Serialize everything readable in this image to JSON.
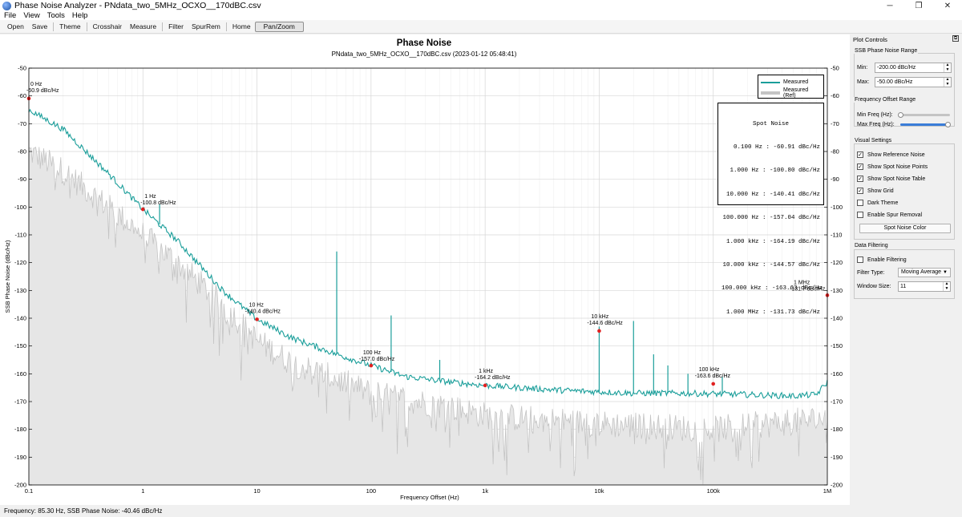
{
  "window": {
    "title": "Phase Noise Analyzer - PNdata_two_5MHz_OCXO__170dBC.csv",
    "minimize": "─",
    "maximize": "❐",
    "close": "✕"
  },
  "menu": [
    "File",
    "View",
    "Tools",
    "Help"
  ],
  "toolbar": {
    "groups": [
      [
        "Open",
        "Save"
      ],
      [
        "Theme"
      ],
      [
        "Crosshair",
        "Measure"
      ],
      [
        "Filter",
        "SpurRem"
      ],
      [
        "Home",
        "Pan/Zoom"
      ]
    ],
    "active": "Pan/Zoom"
  },
  "chart_data": {
    "type": "line",
    "title": "Phase Noise",
    "subtitle": "PNdata_two_5MHz_OCXO__170dBC.csv (2023-01-12 05:48:41)",
    "xlabel": "Frequency Offset (Hz)",
    "ylabel": "SSB Phase Noise (dBc/Hz)",
    "x_scale": "log",
    "xlim": [
      0.1,
      1000000
    ],
    "ylim": [
      -200,
      -50
    ],
    "x_ticks": [
      0.1,
      1,
      10,
      100,
      1000,
      10000,
      100000,
      1000000
    ],
    "x_tick_labels": [
      "0.1",
      "1",
      "10",
      "100",
      "1k",
      "10k",
      "100k",
      "1M"
    ],
    "y_ticks": [
      -50,
      -60,
      -70,
      -80,
      -90,
      -100,
      -110,
      -120,
      -130,
      -140,
      -150,
      -160,
      -170,
      -180,
      -190,
      -200
    ],
    "grid": true,
    "legend_position": "top-right",
    "series": [
      {
        "name": "Measured",
        "color": "#1a9e9a",
        "x": [
          0.1,
          0.2,
          0.5,
          1,
          2,
          5,
          10,
          20,
          50,
          100,
          200,
          500,
          1000,
          2000,
          5000,
          10000,
          20000,
          50000,
          100000,
          200000,
          500000,
          800000,
          1000000
        ],
        "y": [
          -65,
          -72,
          -88,
          -100.8,
          -112,
          -130,
          -140.4,
          -147,
          -153,
          -157,
          -161,
          -163,
          -164.2,
          -165,
          -166,
          -166.5,
          -167,
          -167,
          -167.2,
          -167.5,
          -168,
          -167.5,
          -163
        ],
        "spurs": [
          {
            "x": 1.4,
            "y": -99
          },
          {
            "x": 50,
            "y": -116
          },
          {
            "x": 150,
            "y": -139
          },
          {
            "x": 400,
            "y": -155
          },
          {
            "x": 10000,
            "y": -143
          },
          {
            "x": 20000,
            "y": -141
          },
          {
            "x": 30000,
            "y": -153
          },
          {
            "x": 40000,
            "y": -157
          },
          {
            "x": 60000,
            "y": -160
          },
          {
            "x": 120000,
            "y": -161
          }
        ]
      },
      {
        "name": "Measured (Ref)",
        "color": "#c4c4c4",
        "x": [
          0.1,
          0.2,
          0.5,
          1,
          2,
          5,
          10,
          20,
          50,
          100,
          500,
          1000,
          10000,
          100000,
          1000000
        ],
        "y": [
          -80,
          -87,
          -100,
          -110,
          -120,
          -135,
          -148,
          -156,
          -162,
          -167,
          -172,
          -175,
          -178,
          -180,
          -176
        ]
      }
    ],
    "spot_points": [
      {
        "x": 0.1,
        "y": -60.91,
        "label_freq": "0 Hz",
        "label_val": "-60.9 dBc/Hz"
      },
      {
        "x": 1,
        "y": -100.8,
        "label_freq": "1 Hz",
        "label_val": "-100.8 dBc/Hz"
      },
      {
        "x": 10,
        "y": -140.41,
        "label_freq": "10 Hz",
        "label_val": "-140.4 dBc/Hz"
      },
      {
        "x": 100,
        "y": -157.04,
        "label_freq": "100 Hz",
        "label_val": "-157.0 dBc/Hz"
      },
      {
        "x": 1000,
        "y": -164.19,
        "label_freq": "1 kHz",
        "label_val": "-164.2 dBc/Hz"
      },
      {
        "x": 10000,
        "y": -144.57,
        "label_freq": "10 kHz",
        "label_val": "-144.6 dBc/Hz"
      },
      {
        "x": 100000,
        "y": -163.63,
        "label_freq": "100 kHz",
        "label_val": "-163.6 dBc/Hz"
      },
      {
        "x": 1000000,
        "y": -131.73,
        "label_freq": "1 MHz",
        "label_val": "-131.7 dBc/Hz"
      }
    ],
    "spot_point_color": "#e02020"
  },
  "spot_table": {
    "title": "Spot Noise",
    "rows": [
      "0.100 Hz : -60.91 dBc/Hz",
      "1.000 Hz : -100.80 dBc/Hz",
      "10.000 Hz : -140.41 dBc/Hz",
      "100.000 Hz : -157.04 dBc/Hz",
      "1.000 kHz : -164.19 dBc/Hz",
      "10.000 kHz : -144.57 dBc/Hz",
      "100.000 kHz : -163.63 dBc/Hz",
      "1.000 MHz : -131.73 dBc/Hz"
    ]
  },
  "status": "Frequency: 85.30 Hz, SSB Phase Noise: -40.46 dBc/Hz",
  "side_panel": {
    "title": "Plot Controls",
    "range_group": {
      "title": "SSB Phase Noise Range",
      "min_label": "Min:",
      "min_value": "-200.00 dBc/Hz",
      "max_label": "Max:",
      "max_value": "-50.00 dBc/Hz"
    },
    "freq_group": {
      "title": "Frequency Offset Range",
      "min_label": "Min Freq (Hz):",
      "min_level": 0.0,
      "max_label": "Max Freq (Hz):",
      "max_level": 1.0
    },
    "visual_group": {
      "title": "Visual Settings",
      "checks": [
        {
          "label": "Show Reference Noise",
          "checked": true
        },
        {
          "label": "Show Spot Noise Points",
          "checked": true
        },
        {
          "label": "Show Spot Noise Table",
          "checked": true
        },
        {
          "label": "Show Grid",
          "checked": true
        },
        {
          "label": "Dark Theme",
          "checked": false
        },
        {
          "label": "Enable Spur Removal",
          "checked": false
        }
      ],
      "button": "Spot Noise Color"
    },
    "filter_group": {
      "title": "Data Filtering",
      "enable_label": "Enable Filtering",
      "enable_checked": false,
      "type_label": "Filter Type:",
      "type_value": "Moving Average",
      "window_label": "Window Size:",
      "window_value": "11"
    }
  }
}
